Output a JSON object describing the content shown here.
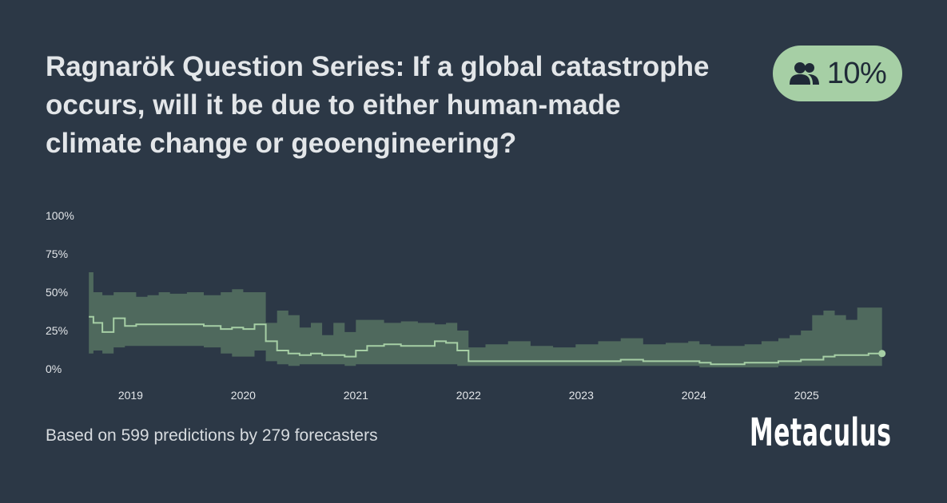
{
  "title": "Ragnarök Question Series: If a global catastrophe occurs, will it be due to either human-made climate change or geoengineering?",
  "badge": {
    "icon": "users-icon",
    "value": "10%"
  },
  "footer": "Based on 599 predictions by 279 forecasters",
  "brand": "Metaculus",
  "colors": {
    "background": "#2c3846",
    "band": "#5b7a66",
    "median_line": "#a6cfa5",
    "badge_bg": "#a6cfa5",
    "text": "#e3e6e9"
  },
  "chart_data": {
    "type": "area",
    "title": "",
    "xlabel": "",
    "ylabel": "",
    "y_tick_labels": [
      "0%",
      "25%",
      "50%",
      "75%",
      "100%"
    ],
    "x_tick_labels": [
      "2019",
      "2020",
      "2021",
      "2022",
      "2023",
      "2024",
      "2025"
    ],
    "xlim": [
      2018.65,
      2025.8
    ],
    "ylim": [
      0,
      100
    ],
    "series": [
      {
        "x": [
          2018.68,
          2018.72,
          2018.8,
          2018.9,
          2019.0,
          2019.1,
          2019.2,
          2019.3,
          2019.4,
          2019.55,
          2019.7,
          2019.85,
          2019.95,
          2020.05,
          2020.15,
          2020.25,
          2020.35,
          2020.45,
          2020.55,
          2020.65,
          2020.75,
          2020.85,
          2020.95,
          2021.05,
          2021.15,
          2021.3,
          2021.45,
          2021.6,
          2021.75,
          2021.85,
          2021.95,
          2022.05,
          2022.2,
          2022.4,
          2022.6,
          2022.8,
          2023.0,
          2023.2,
          2023.4,
          2023.6,
          2023.8,
          2024.0,
          2024.1,
          2024.2,
          2024.35,
          2024.5,
          2024.65,
          2024.8,
          2024.9,
          2025.0,
          2025.1,
          2025.2,
          2025.3,
          2025.4,
          2025.5,
          2025.6,
          2025.72
        ],
        "median": [
          34,
          30,
          24,
          33,
          28,
          29,
          29,
          29,
          29,
          29,
          28,
          26,
          27,
          26,
          29,
          18,
          12,
          10,
          9,
          10,
          9,
          9,
          8,
          12,
          15,
          16,
          15,
          15,
          18,
          17,
          12,
          5,
          5,
          5,
          5,
          5,
          5,
          5,
          6,
          5,
          5,
          5,
          4,
          3,
          3,
          4,
          4,
          5,
          5,
          6,
          6,
          8,
          9,
          9,
          9,
          10,
          10
        ],
        "lower": [
          10,
          12,
          10,
          14,
          15,
          15,
          15,
          15,
          15,
          15,
          14,
          10,
          8,
          8,
          12,
          5,
          3,
          2,
          3,
          3,
          3,
          3,
          2,
          3,
          3,
          3,
          3,
          3,
          3,
          3,
          2,
          2,
          2,
          2,
          2,
          2,
          2,
          2,
          2,
          2,
          2,
          2,
          1,
          1,
          1,
          1,
          1,
          2,
          2,
          2,
          2,
          2,
          2,
          2,
          2,
          2,
          2
        ],
        "upper": [
          63,
          50,
          48,
          50,
          50,
          47,
          48,
          50,
          49,
          50,
          48,
          50,
          52,
          50,
          50,
          30,
          38,
          35,
          27,
          30,
          22,
          30,
          24,
          32,
          32,
          30,
          31,
          30,
          29,
          30,
          25,
          14,
          16,
          18,
          15,
          14,
          16,
          18,
          20,
          16,
          17,
          18,
          16,
          15,
          15,
          16,
          18,
          20,
          22,
          25,
          35,
          38,
          35,
          32,
          40,
          40,
          40
        ]
      }
    ]
  }
}
